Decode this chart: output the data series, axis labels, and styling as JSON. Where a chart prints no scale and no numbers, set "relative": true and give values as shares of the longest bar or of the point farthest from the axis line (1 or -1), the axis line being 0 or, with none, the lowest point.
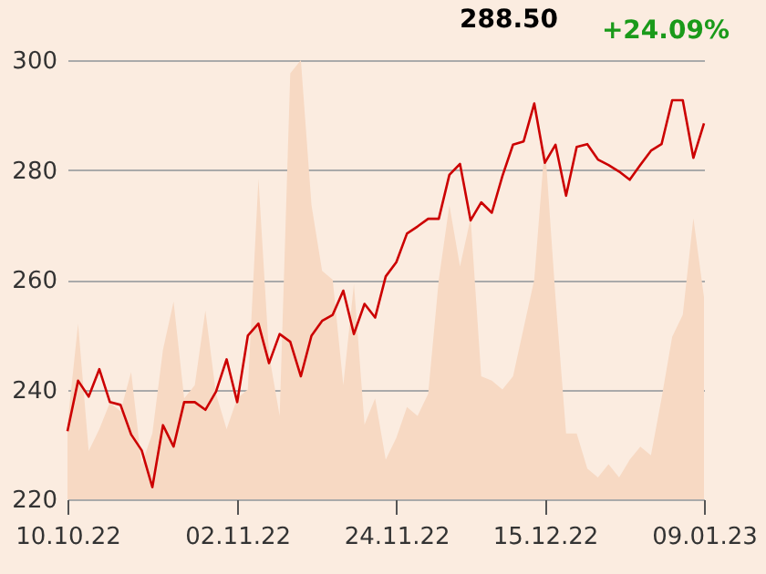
{
  "chart_data": [
    {
      "type": "line",
      "categories": [
        "10.10.22",
        null,
        null,
        null,
        null,
        null,
        null,
        null,
        null,
        null,
        null,
        null,
        null,
        null,
        null,
        null,
        "02.11.22",
        null,
        null,
        null,
        null,
        null,
        null,
        null,
        null,
        null,
        null,
        null,
        null,
        null,
        null,
        "24.11.22",
        null,
        null,
        null,
        null,
        null,
        null,
        null,
        null,
        null,
        null,
        null,
        null,
        null,
        "15.12.22",
        null,
        null,
        null,
        null,
        null,
        null,
        null,
        null,
        null,
        null,
        null,
        null,
        null,
        null,
        "09.01.23"
      ],
      "series": [
        {
          "color": "#cc0000",
          "values": [
            232.4,
            241.6,
            238.7,
            243.7,
            237.7,
            237.2,
            231.8,
            228.9,
            222.2,
            233.5,
            229.6,
            237.7,
            237.7,
            236.3,
            239.6,
            245.5,
            237.7,
            249.8,
            252.0,
            244.8,
            250.1,
            248.7,
            242.4,
            249.8,
            252.5,
            253.6,
            258.0,
            250.1,
            255.6,
            253.1,
            260.6,
            263.2,
            268.4,
            269.7,
            271.1,
            271.1,
            279.1,
            281.1,
            270.8,
            274.1,
            272.2,
            278.9,
            284.6,
            285.2,
            292.1,
            281.3,
            284.6,
            275.3,
            284.2,
            284.7,
            281.9,
            280.9,
            279.7,
            278.2,
            280.9,
            283.5,
            284.7,
            292.7,
            292.7,
            282.2,
            288.5
          ]
        }
      ],
      "ylim": [
        220,
        300
      ],
      "yticks": [
        220,
        240,
        260,
        280,
        300
      ],
      "grid": "y",
      "annotations": [
        "288.50",
        "+24.09%"
      ]
    },
    {
      "type": "area",
      "relative": true,
      "tick_labels": false,
      "categories": [
        "10.10.22",
        null,
        null,
        null,
        null,
        null,
        null,
        null,
        null,
        null,
        null,
        null,
        null,
        null,
        null,
        null,
        "02.11.22",
        null,
        null,
        null,
        null,
        null,
        null,
        null,
        null,
        null,
        null,
        null,
        null,
        null,
        null,
        "24.11.22",
        null,
        null,
        null,
        null,
        null,
        null,
        null,
        null,
        null,
        null,
        null,
        null,
        null,
        "15.12.22",
        null,
        null,
        null,
        null,
        null,
        null,
        null,
        null,
        null,
        null,
        null,
        null,
        null,
        null,
        "09.01.23"
      ],
      "series": [
        {
          "color": "#f7d9c3",
          "values": [
            0.17,
            0.4,
            0.11,
            0.16,
            0.22,
            0.2,
            0.29,
            0.08,
            0.15,
            0.34,
            0.45,
            0.23,
            0.26,
            0.43,
            0.24,
            0.16,
            0.23,
            0.25,
            0.73,
            0.33,
            0.19,
            0.97,
            1,
            0.67,
            0.52,
            0.5,
            0.26,
            0.49,
            0.17,
            0.23,
            0.09,
            0.14,
            0.21,
            0.19,
            0.24,
            0.5,
            0.67,
            0.53,
            0.64,
            0.28,
            0.27,
            0.25,
            0.28,
            0.39,
            0.5,
            0.81,
            0.46,
            0.15,
            0.15,
            0.07,
            0.05,
            0.08,
            0.05,
            0.09,
            0.12,
            0.1,
            0.23,
            0.37,
            0.42,
            0.64,
            0.46
          ]
        }
      ]
    }
  ]
}
